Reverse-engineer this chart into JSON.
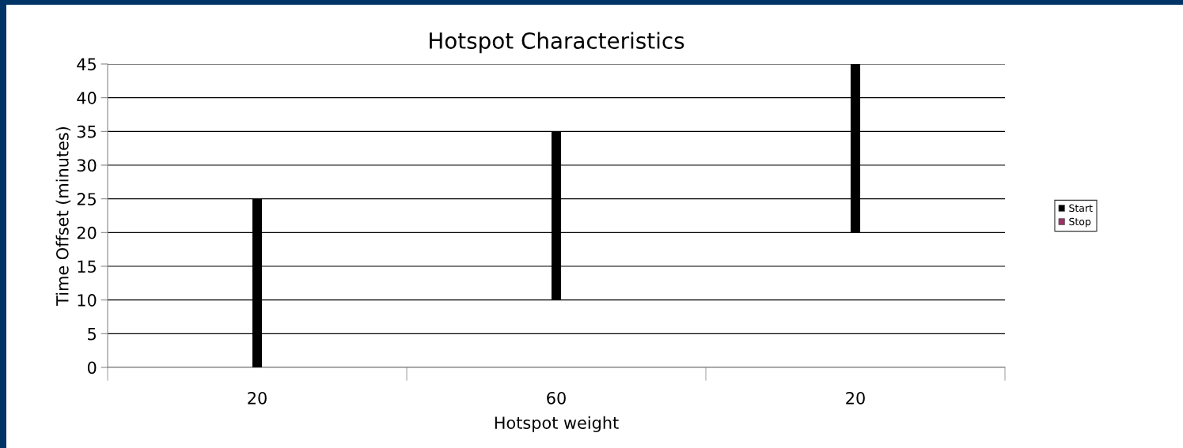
{
  "chart_data": {
    "type": "bar",
    "title": "Hotspot Characteristics",
    "xlabel": "Hotspot weight",
    "ylabel": "Time Offset (minutes)",
    "categories": [
      "20",
      "60",
      "20"
    ],
    "series": [
      {
        "name": "Start",
        "color": "#000000",
        "values": [
          25,
          25,
          25
        ],
        "base": [
          0,
          10,
          20
        ]
      },
      {
        "name": "Stop",
        "color": "#993366",
        "values": [
          null,
          null,
          null
        ]
      }
    ],
    "ylim": [
      0,
      45
    ],
    "yticks": [
      0,
      5,
      10,
      15,
      20,
      25,
      30,
      35,
      40,
      45
    ],
    "grid": "y",
    "legend": "right"
  }
}
